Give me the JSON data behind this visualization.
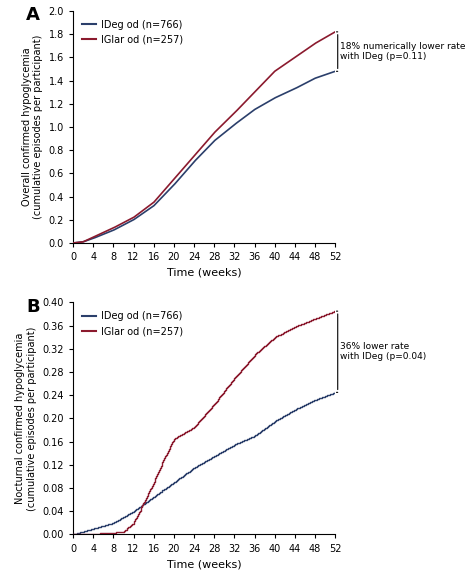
{
  "panel_A": {
    "title": "A",
    "ylabel_line1": "Overall confirmed hypoglycemia",
    "ylabel_line2": "(cumulative episodes per participant)",
    "xlabel": "Time (weeks)",
    "ylim": [
      0,
      2.0
    ],
    "yticks": [
      0.0,
      0.2,
      0.4,
      0.6,
      0.8,
      1.0,
      1.2,
      1.4,
      1.6,
      1.8,
      2.0
    ],
    "xticks": [
      0,
      4,
      8,
      12,
      16,
      20,
      24,
      28,
      32,
      36,
      40,
      44,
      48,
      52
    ],
    "annotation": "18% numerically lower rate\nwith IDeg (p=0.11)",
    "ideg_end": 1.48,
    "iglar_end": 1.82,
    "ideg_color": "#2b3f6b",
    "iglar_color": "#8b1a2e",
    "ideg_label": "IDeg od (n=766)",
    "iglar_label": "IGlar od (n=257)"
  },
  "panel_B": {
    "title": "B",
    "ylabel_line1": "Nocturnal confirmed hypoglycemia",
    "ylabel_line2": "(cumulative episodes per participant)",
    "xlabel": "Time (weeks)",
    "ylim": [
      0,
      0.4
    ],
    "yticks": [
      0.0,
      0.04,
      0.08,
      0.12,
      0.16,
      0.2,
      0.24,
      0.28,
      0.32,
      0.36,
      0.4
    ],
    "xticks": [
      0,
      4,
      8,
      12,
      16,
      20,
      24,
      28,
      32,
      36,
      40,
      44,
      48,
      52
    ],
    "annotation": "36% lower rate\nwith IDeg (p=0.04)",
    "ideg_end": 0.245,
    "iglar_end": 0.385,
    "ideg_color": "#2b3f6b",
    "iglar_color": "#8b1a2e",
    "ideg_label": "IDeg od (n=766)",
    "iglar_label": "IGlar od (n=257)"
  }
}
